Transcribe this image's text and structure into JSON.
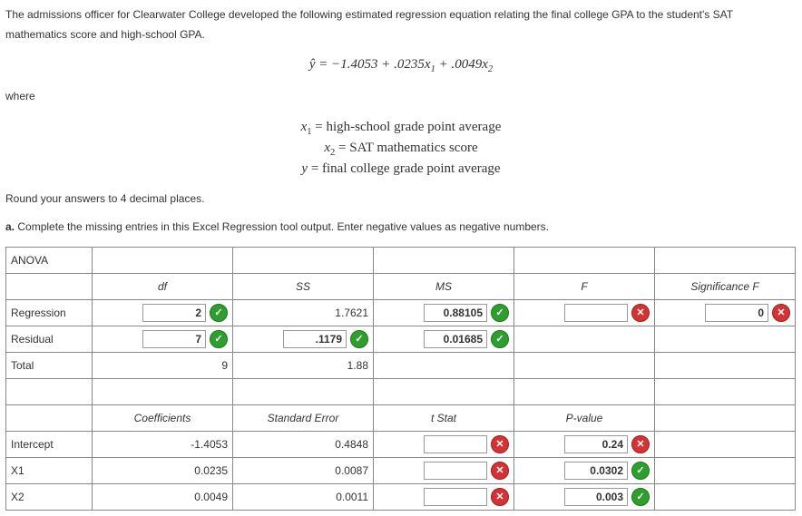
{
  "intro": {
    "p1": "The admissions officer for Clearwater College developed the following estimated regression equation relating the final college GPA to the student's SAT mathematics score and high-school GPA.",
    "where_label": "where",
    "round_note": "Round your answers to 4 decimal places.",
    "part_a_label": "a.",
    "part_a_text": "Complete the missing entries in this Excel Regression tool output. Enter negative values as negative numbers."
  },
  "equation": {
    "main": "ŷ = −1.4053 + .0235x₁ + .0049x₂",
    "def_x1": "x₁ = high-school grade point average",
    "def_x2": "x₂ = SAT mathematics score",
    "def_y": "y = final college grade point average"
  },
  "table": {
    "title": "ANOVA",
    "headers": {
      "df": "df",
      "ss": "SS",
      "ms": "MS",
      "f": "F",
      "sigf": "Significance F"
    },
    "rows": {
      "regression": {
        "label": "Regression",
        "df": "2",
        "df_mark": "correct",
        "ss": "1.7621",
        "ms": "0.88105",
        "ms_mark": "correct",
        "f": "",
        "f_mark": "wrong",
        "sigf": "0",
        "sigf_mark": "wrong"
      },
      "residual": {
        "label": "Residual",
        "df": "7",
        "df_mark": "correct",
        "ss": ".1179",
        "ss_mark": "correct",
        "ms": "0.01685",
        "ms_mark": "correct"
      },
      "total": {
        "label": "Total",
        "df": "9",
        "ss": "1.88"
      }
    },
    "headers2": {
      "coef": "Coefficients",
      "se": "Standard Error",
      "tstat": "t Stat",
      "pval": "P-value"
    },
    "coefs": {
      "intercept": {
        "label": "Intercept",
        "coef": "-1.4053",
        "se": "0.4848",
        "tstat": "",
        "tstat_mark": "wrong",
        "pval": "0.24",
        "pval_mark": "wrong"
      },
      "x1": {
        "label": "X1",
        "coef": "0.0235",
        "se": "0.0087",
        "tstat": "",
        "tstat_mark": "wrong",
        "pval": "0.0302",
        "pval_mark": "correct"
      },
      "x2": {
        "label": "X2",
        "coef": "0.0049",
        "se": "0.0011",
        "tstat": "",
        "tstat_mark": "wrong",
        "pval": "0.003",
        "pval_mark": "correct"
      }
    }
  },
  "marks": {
    "correct": "✓",
    "wrong": "✕"
  }
}
